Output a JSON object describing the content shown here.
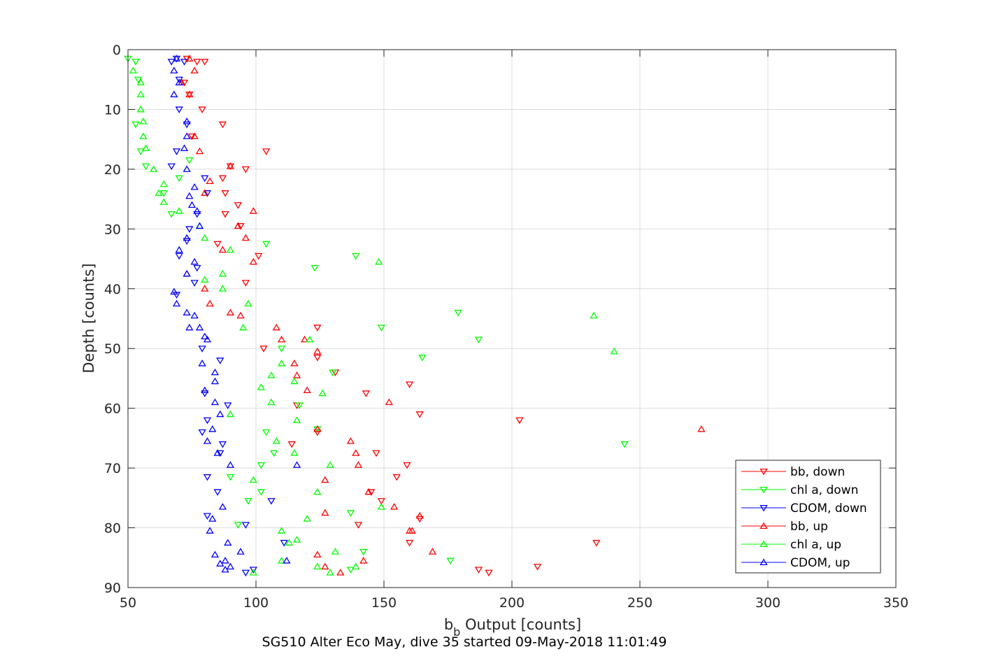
{
  "chart_data": {
    "type": "scatter",
    "title": "",
    "caption": "SG510 Alter Eco May, dive 35 started 09-May-2018 11:01:49",
    "xlabel_main": "b",
    "xlabel_sub": "b",
    "xlabel_rest": " Output [counts]",
    "ylabel": "Depth [counts]",
    "xlim": [
      50,
      350
    ],
    "ylim": [
      0,
      90
    ],
    "y_reversed": true,
    "grid": true,
    "legend_position": "bottom-right",
    "x_ticks": [
      "50",
      "100",
      "150",
      "200",
      "250",
      "300",
      "350"
    ],
    "y_ticks": [
      "0",
      "10",
      "20",
      "30",
      "40",
      "50",
      "60",
      "70",
      "80",
      "90"
    ],
    "series": [
      {
        "name": "bb, down",
        "color": "#ff0000",
        "marker": "triangle-down",
        "points": [
          [
            73,
            1.5
          ],
          [
            77,
            2
          ],
          [
            80,
            2
          ],
          [
            72,
            5.5
          ],
          [
            74,
            7.5
          ],
          [
            79,
            10
          ],
          [
            87,
            12.5
          ],
          [
            75,
            14.5
          ],
          [
            104,
            17
          ],
          [
            96,
            20
          ],
          [
            90,
            19.5
          ],
          [
            87,
            21.5
          ],
          [
            88,
            24
          ],
          [
            93,
            26
          ],
          [
            88,
            27.5
          ],
          [
            94,
            29.5
          ],
          [
            85,
            32.5
          ],
          [
            101,
            34.5
          ],
          [
            96,
            39
          ],
          [
            124,
            46.5
          ],
          [
            103,
            50
          ],
          [
            124,
            51.5
          ],
          [
            131,
            54
          ],
          [
            160,
            56
          ],
          [
            143,
            57.5
          ],
          [
            116,
            59.5
          ],
          [
            164,
            61
          ],
          [
            203,
            62
          ],
          [
            124,
            64
          ],
          [
            114,
            66
          ],
          [
            147,
            67.5
          ],
          [
            159,
            69.5
          ],
          [
            155,
            71.5
          ],
          [
            145,
            74
          ],
          [
            149,
            75.5
          ],
          [
            164,
            78.5
          ],
          [
            140,
            79.5
          ],
          [
            160,
            82.5
          ],
          [
            233,
            82.5
          ],
          [
            210,
            86.5
          ],
          [
            187,
            87
          ],
          [
            191,
            87.5
          ]
        ]
      },
      {
        "name": "chl a, down",
        "color": "#00ff00",
        "marker": "triangle-down",
        "points": [
          [
            50,
            1.5
          ],
          [
            53,
            2
          ],
          [
            54,
            5
          ],
          [
            53,
            12.5
          ],
          [
            55,
            17
          ],
          [
            57,
            19.5
          ],
          [
            64,
            24
          ],
          [
            67,
            27.5
          ],
          [
            70,
            21.5
          ],
          [
            74,
            18.5
          ],
          [
            104,
            32.5
          ],
          [
            123,
            36.5
          ],
          [
            139,
            34.5
          ],
          [
            179,
            44
          ],
          [
            187,
            48.5
          ],
          [
            149,
            46.5
          ],
          [
            110,
            50
          ],
          [
            165,
            51.5
          ],
          [
            130,
            54
          ],
          [
            117,
            59.5
          ],
          [
            124,
            63.5
          ],
          [
            104,
            64
          ],
          [
            244,
            66
          ],
          [
            107,
            67.5
          ],
          [
            102,
            69.5
          ],
          [
            90,
            71.5
          ],
          [
            102,
            74
          ],
          [
            97,
            75.5
          ],
          [
            137,
            77.5
          ],
          [
            93,
            79.5
          ],
          [
            142,
            84
          ],
          [
            176,
            85.5
          ],
          [
            137,
            87
          ]
        ]
      },
      {
        "name": "CDOM, down",
        "color": "#0000ff",
        "marker": "triangle-down",
        "points": [
          [
            69,
            1.5
          ],
          [
            67,
            2
          ],
          [
            72,
            2
          ],
          [
            70,
            5
          ],
          [
            70,
            10
          ],
          [
            73,
            12.5
          ],
          [
            69,
            17
          ],
          [
            67,
            19.5
          ],
          [
            80,
            21.5
          ],
          [
            81,
            24
          ],
          [
            77,
            27.5
          ],
          [
            74,
            30
          ],
          [
            73,
            32
          ],
          [
            70,
            34.5
          ],
          [
            77,
            36.5
          ],
          [
            76,
            39
          ],
          [
            69,
            41
          ],
          [
            79,
            50
          ],
          [
            86,
            52
          ],
          [
            80,
            57.5
          ],
          [
            89,
            59.5
          ],
          [
            81,
            62
          ],
          [
            79,
            64
          ],
          [
            87,
            66
          ],
          [
            86,
            67.5
          ],
          [
            81,
            71.5
          ],
          [
            85,
            74
          ],
          [
            106,
            75.5
          ],
          [
            81,
            78
          ],
          [
            96,
            79.5
          ],
          [
            111,
            82.5
          ],
          [
            99,
            87
          ],
          [
            96,
            87.5
          ]
        ]
      },
      {
        "name": "bb, up",
        "color": "#ff0000",
        "marker": "triangle-up",
        "points": [
          [
            74,
            1.5
          ],
          [
            76,
            3.5
          ],
          [
            71,
            5.5
          ],
          [
            74,
            7.5
          ],
          [
            76,
            14.5
          ],
          [
            78,
            17
          ],
          [
            82,
            22
          ],
          [
            80,
            24
          ],
          [
            90,
            19.5
          ],
          [
            99,
            27
          ],
          [
            93,
            29.5
          ],
          [
            96,
            31.5
          ],
          [
            87,
            33.5
          ],
          [
            99,
            35.5
          ],
          [
            73,
            37.5
          ],
          [
            80,
            40
          ],
          [
            82,
            42.5
          ],
          [
            94,
            44.5
          ],
          [
            90,
            44
          ],
          [
            108,
            46.5
          ],
          [
            110,
            48.5
          ],
          [
            119,
            48.5
          ],
          [
            124,
            50.5
          ],
          [
            115,
            52.5
          ],
          [
            116,
            54.5
          ],
          [
            120,
            57
          ],
          [
            152,
            59
          ],
          [
            274,
            63.5
          ],
          [
            124,
            63.5
          ],
          [
            137,
            65.5
          ],
          [
            139,
            67.5
          ],
          [
            140,
            69.5
          ],
          [
            127,
            72
          ],
          [
            144,
            74
          ],
          [
            154,
            76.5
          ],
          [
            127,
            77.5
          ],
          [
            164,
            78
          ],
          [
            161,
            80.5
          ],
          [
            169,
            84
          ],
          [
            142,
            85.5
          ],
          [
            127,
            86.5
          ],
          [
            133,
            87.5
          ],
          [
            124,
            84.5
          ],
          [
            160,
            80.5
          ]
        ]
      },
      {
        "name": "chl a, up",
        "color": "#00ff00",
        "marker": "triangle-up",
        "points": [
          [
            52,
            3.5
          ],
          [
            55,
            5.5
          ],
          [
            55,
            7.5
          ],
          [
            55,
            10
          ],
          [
            56,
            12
          ],
          [
            56,
            14.5
          ],
          [
            57,
            16.5
          ],
          [
            60,
            20
          ],
          [
            64,
            22.5
          ],
          [
            62,
            24
          ],
          [
            64,
            25.5
          ],
          [
            70,
            27
          ],
          [
            78,
            29.5
          ],
          [
            80,
            31.5
          ],
          [
            90,
            33.5
          ],
          [
            148,
            35.5
          ],
          [
            87,
            37.5
          ],
          [
            80,
            38.5
          ],
          [
            87,
            40
          ],
          [
            97,
            42.5
          ],
          [
            95,
            46.5
          ],
          [
            121,
            48.5
          ],
          [
            232,
            44.5
          ],
          [
            240,
            50.5
          ],
          [
            110,
            52.5
          ],
          [
            106,
            54.5
          ],
          [
            115,
            55.5
          ],
          [
            102,
            56.5
          ],
          [
            126,
            57.5
          ],
          [
            106,
            59
          ],
          [
            90,
            61
          ],
          [
            116,
            62
          ],
          [
            108,
            65.5
          ],
          [
            115,
            67.5
          ],
          [
            129,
            69.5
          ],
          [
            99,
            72
          ],
          [
            124,
            74
          ],
          [
            149,
            76.5
          ],
          [
            120,
            78.5
          ],
          [
            110,
            80.5
          ],
          [
            116,
            82
          ],
          [
            113,
            82.5
          ],
          [
            131,
            84
          ],
          [
            110,
            85.5
          ],
          [
            124,
            86.5
          ],
          [
            139,
            86.5
          ],
          [
            129,
            87.5
          ],
          [
            99,
            87.5
          ]
        ]
      },
      {
        "name": "CDOM, up",
        "color": "#0000ff",
        "marker": "triangle-up",
        "points": [
          [
            69,
            1.5
          ],
          [
            68,
            3.5
          ],
          [
            70,
            5.5
          ],
          [
            68,
            7.5
          ],
          [
            73,
            12
          ],
          [
            73,
            14.5
          ],
          [
            72,
            16.5
          ],
          [
            73,
            20
          ],
          [
            76,
            23
          ],
          [
            74,
            24.5
          ],
          [
            75,
            26
          ],
          [
            77,
            27
          ],
          [
            78,
            29.5
          ],
          [
            73,
            31.5
          ],
          [
            70,
            33.5
          ],
          [
            76,
            35.5
          ],
          [
            73,
            37.5
          ],
          [
            68,
            40.5
          ],
          [
            69,
            42.5
          ],
          [
            73,
            44
          ],
          [
            76,
            44.5
          ],
          [
            74,
            46.5
          ],
          [
            78,
            46.5
          ],
          [
            81,
            48.5
          ],
          [
            80,
            48
          ],
          [
            79,
            52.5
          ],
          [
            84,
            54
          ],
          [
            84,
            55.5
          ],
          [
            80,
            57
          ],
          [
            84,
            59
          ],
          [
            86,
            61
          ],
          [
            83,
            63.5
          ],
          [
            81,
            65.5
          ],
          [
            85,
            67.5
          ],
          [
            90,
            69.5
          ],
          [
            116,
            69.5
          ],
          [
            87,
            76.5
          ],
          [
            83,
            78.5
          ],
          [
            82,
            80.5
          ],
          [
            89,
            82.5
          ],
          [
            94,
            84
          ],
          [
            84,
            84.5
          ],
          [
            88,
            85.5
          ],
          [
            86,
            86
          ],
          [
            88,
            87
          ],
          [
            90,
            86.5
          ],
          [
            112,
            85.5
          ]
        ]
      }
    ]
  }
}
